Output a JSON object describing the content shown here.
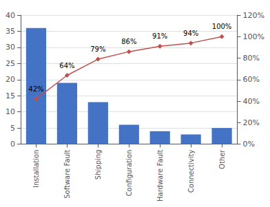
{
  "chart_data": {
    "type": "bar",
    "categories": [
      "Installation",
      "Software Fault",
      "Shipping",
      "Configuration",
      "Hardware Fault",
      "Connectivity",
      "Other"
    ],
    "series": [
      {
        "type": "bar",
        "color": "#4472C4",
        "values": [
          36,
          19,
          13,
          6,
          4,
          3,
          5
        ]
      },
      {
        "type": "line",
        "axis": "y2",
        "color": "#C0504D",
        "marker": "diamond",
        "values": [
          42,
          64,
          79,
          86,
          91,
          94,
          100
        ],
        "data_labels": true,
        "value_labels": [
          "42%",
          "64%",
          "79%",
          "86%",
          "91%",
          "94%",
          "100%"
        ]
      }
    ],
    "ylim": [
      0,
      40
    ],
    "yticks": [
      0,
      5,
      10,
      15,
      20,
      25,
      30,
      35,
      40
    ],
    "y2lim": [
      0,
      120
    ],
    "y2ticks": [
      {
        "value": 0,
        "label": "0%"
      },
      {
        "value": 20,
        "label": "20%"
      },
      {
        "value": 40,
        "label": "40%"
      },
      {
        "value": 60,
        "label": "60%"
      },
      {
        "value": 80,
        "label": "80%"
      },
      {
        "value": 100,
        "label": "100%"
      },
      {
        "value": 120,
        "label": "120%"
      }
    ],
    "grid": true
  }
}
